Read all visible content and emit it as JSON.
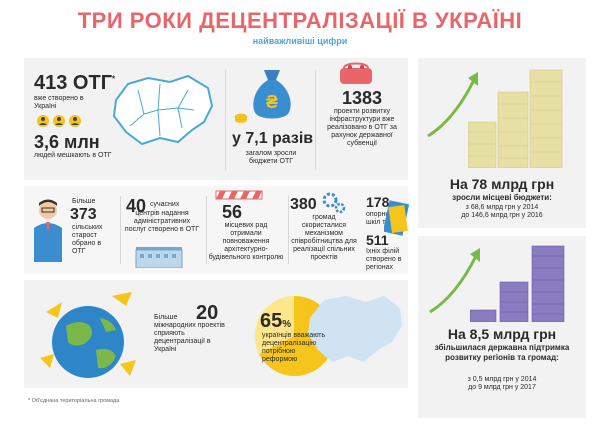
{
  "header": {
    "title": "ТРИ РОКИ ДЕЦЕНТРАЛІЗАЦІЇ В УКРАЇНІ",
    "subtitle": "найважливіші цифри"
  },
  "stats": {
    "otg_count": "413 ОТГ",
    "otg_count_star": "*",
    "otg_desc": "вже створено в Україні",
    "people": "3,6 млн",
    "people_desc": "людей мешкають в ОТГ",
    "budget_times": "у 7,1 разів",
    "budget_times_desc": "загалом зросли бюджети ОТГ",
    "projects": "1383",
    "projects_desc": "проекти розвитку інфраструктури вже реалізовано в ОТГ за рахунок державної субвенції",
    "local_budget": "На 78 млрд грн",
    "local_budget_desc": "зросли місцеві бюджети:",
    "local_budget_detail1": "з 68,6 млрд грн у 2014",
    "local_budget_detail2": "до 146,6 млрд грн у 2016",
    "elders_prefix": "Більше",
    "elders": "373",
    "elders_desc": "сільських старост обрано в ОТГ",
    "cnap": "40",
    "cnap_desc_top": "сучасних",
    "cnap_desc": "центрів надання адміністративних послуг створено в ОТГ",
    "councils": "56",
    "councils_desc": "місцевих рад отримали повноваження архітектурно-будівельного контролю",
    "cooperation": "380",
    "cooperation_desc": "громад скористалися механізмом співробітництва для реалізації спільних проектів",
    "schools": "178",
    "schools_desc": "опорних шкіл та",
    "branches": "511",
    "branches_desc": "їхніх філій створено в регіонах",
    "intl_prefix": "Більше",
    "intl": "20",
    "intl_desc": "міжнародних проектів сприяють децентралізації в Україні",
    "support_pct": "65",
    "support_pct_sign": "%",
    "support_desc": "українців вважають децентралізацію потрібною реформою",
    "state_support": "На 8,5 млрд грн",
    "state_support_desc": "збільшилася державна підтримка розвитку регіонів та громад:",
    "state_support_detail1": "з 0,5 млрд грн у 2014",
    "state_support_detail2": "до 9 млрд грн у 2017"
  },
  "footnote": "* Об'єднана територіальна громада",
  "colors": {
    "title": "#e8656a",
    "subtitle": "#4aa8d8",
    "green": "#4aa040",
    "money_green": "#e6e0a4",
    "money_purple": "#8a7cc0",
    "yellow": "#f6c51c",
    "blue": "#3a8ed0"
  },
  "icons": [
    "ukraine-map-icon",
    "money-bag-icon",
    "wallet-icon",
    "money-stack-icon",
    "person-icon",
    "building-icon",
    "barrier-icon",
    "gears-icon",
    "school-icon",
    "globe-icon",
    "pie-icon",
    "growth-arrow-icon"
  ]
}
